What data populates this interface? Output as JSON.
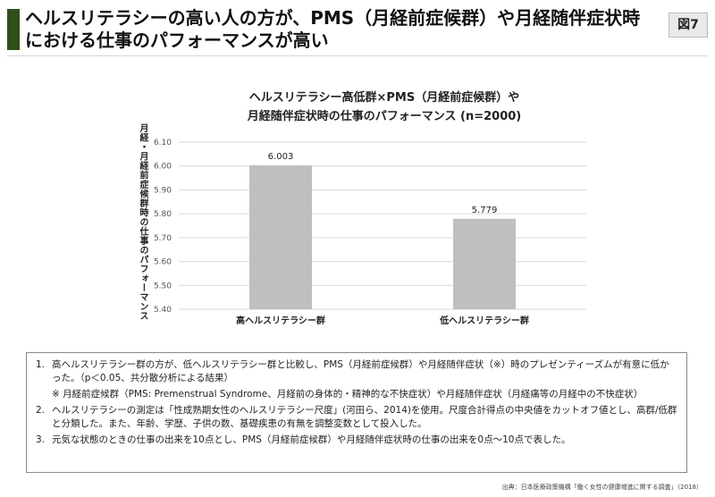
{
  "header": {
    "title": "ヘルスリテラシーの高い人の方が、PMS（月経前症候群）や月経随伴症状時における仕事のパフォーマンスが高い",
    "figure_label": "図7"
  },
  "chart_data": {
    "type": "bar",
    "title_line1": "ヘルスリテラシー高低群×PMS（月経前症候群）や",
    "title_line2": "月経随伴症状時の仕事のパフォーマンス (n=2000)",
    "ylabel": "月経・月経前症候群時の仕事のパフォーマンス",
    "xlabel": "",
    "categories": [
      "高ヘルスリテラシー群",
      "低ヘルスリテラシー群"
    ],
    "values": [
      6.003,
      5.779
    ],
    "value_labels": [
      "6.003",
      "5.779"
    ],
    "ylim": [
      5.4,
      6.1
    ],
    "yticks": [
      "6.10",
      "6.00",
      "5.90",
      "5.80",
      "5.70",
      "5.60",
      "5.50",
      "5.40"
    ],
    "bar_color": "#bfbfbf",
    "grid": true
  },
  "notes": [
    {
      "num": "1.",
      "text": "高ヘルスリテラシー群の方が、低ヘルスリテラシー群と比較し、PMS（月経前症候群）や月経随伴症状（※）時のプレゼンティーズムが有意に低かった。（p＜0.05、共分散分析による結果）"
    },
    {
      "num": "",
      "text": "※ 月経前症候群（PMS: Premenstrual Syndrome、月経前の身体的・精神的な不快症状）や月経随伴症状（月経痛等の月経中の不快症状）"
    },
    {
      "num": "2.",
      "text": "ヘルスリテラシーの測定は「性成熟期女性のヘルスリテラシー尺度」(河田ら、2014)を使用。尺度合計得点の中央値をカットオフ値とし、高群/低群と分類した。また、年齢、学歴、子供の数、基礎疾患の有無を調整変数として投入した。"
    },
    {
      "num": "3.",
      "text": "元気な状態のときの仕事の出来を10点とし、PMS（月経前症候群）や月経随伴症状時の仕事の出来を0点〜10点で表した。"
    }
  ],
  "source": "出典：日本医療政策機構「働く女性の健康増進に関する調査」（2018）"
}
